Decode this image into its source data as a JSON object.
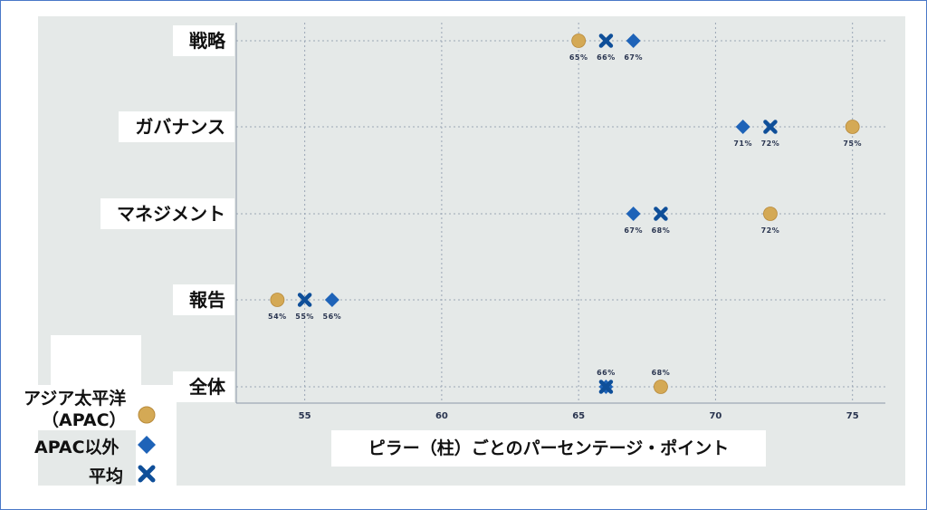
{
  "chart_data": {
    "type": "scatter",
    "xlabel": "ピラー（柱）ごとのパーセンテージ・ポイント",
    "ylabel": "",
    "xlim": [
      52.5,
      76.2
    ],
    "xticks": [
      55,
      60,
      65,
      70,
      75
    ],
    "grid": true,
    "legend_position": "bottom-left",
    "categories": [
      "戦略",
      "ガバナンス",
      "マネジメント",
      "報告",
      "全体"
    ],
    "series": [
      {
        "name": "アジア太平洋（APAC）",
        "marker": "circle",
        "color": "#d4a955",
        "values": [
          65,
          75,
          72,
          54,
          68
        ],
        "labels": [
          "65%",
          "75%",
          "72%",
          "54%",
          "68%"
        ]
      },
      {
        "name": "APAC以外",
        "marker": "diamond",
        "color": "#1e63b8",
        "values": [
          67,
          71,
          67,
          56,
          66
        ],
        "labels": [
          "67%",
          "71%",
          "67%",
          "56%",
          "66%"
        ]
      },
      {
        "name": "平均",
        "marker": "cross",
        "color": "#0f4f99",
        "values": [
          66,
          72,
          68,
          55,
          66
        ],
        "labels": [
          "66%",
          "72%",
          "68%",
          "55%",
          ""
        ]
      }
    ]
  },
  "legend": {
    "apac_line1": "アジア太平洋",
    "apac_line2": "（APAC）",
    "non_apac": "APAC以外",
    "average": "平均"
  }
}
